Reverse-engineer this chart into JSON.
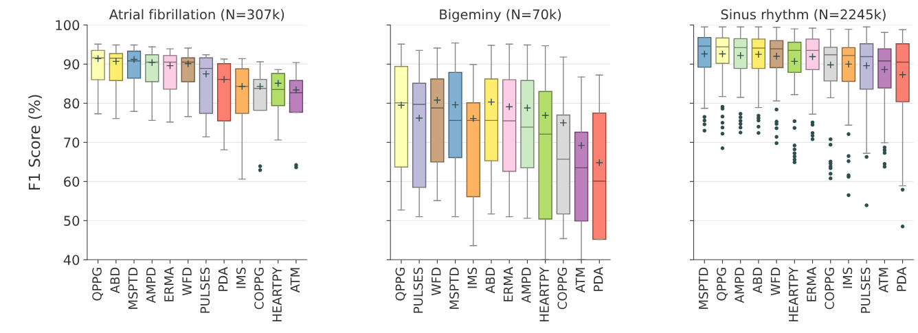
{
  "chart_data": [
    {
      "type": "box",
      "title": "Atrial fibrillation (N=307k)",
      "ylabel": "F1 Score (%)",
      "ylim": [
        40,
        100
      ],
      "yticks": [
        40,
        50,
        60,
        70,
        80,
        90,
        100
      ],
      "grid": "y",
      "categories": [
        "QPPG",
        "ABD",
        "MSPTD",
        "AMPD",
        "ERMA",
        "WFD",
        "PULSES",
        "PDA",
        "IMS",
        "COPPG",
        "HEARTPY",
        "ATM"
      ],
      "colors": [
        "#ffffb3",
        "#ffed6f",
        "#80b1d3",
        "#ccebc5",
        "#fccde5",
        "#c9a47e",
        "#bebada",
        "#fb8072",
        "#fdb462",
        "#d9d9d9",
        "#b3de69",
        "#bc80bd"
      ],
      "boxes": [
        {
          "low": 77.3,
          "q1": 86,
          "median": 91.6,
          "q3": 93.5,
          "high": 95.1,
          "mean": 91.4
        },
        {
          "low": 76.1,
          "q1": 85.8,
          "median": 91.5,
          "q3": 92.7,
          "high": 94.9,
          "mean": 90.7
        },
        {
          "low": 77.9,
          "q1": 86.4,
          "median": 90.8,
          "q3": 93.3,
          "high": 94.9,
          "mean": 91.2
        },
        {
          "low": 75.6,
          "q1": 85.5,
          "median": 90.5,
          "q3": 92.4,
          "high": 94.4,
          "mean": 90.4
        },
        {
          "low": 75.2,
          "q1": 83.6,
          "median": 90.5,
          "q3": 92.2,
          "high": 93.9,
          "mean": 89.6
        },
        {
          "low": 76.6,
          "q1": 85.5,
          "median": 90.5,
          "q3": 91.6,
          "high": 94.1,
          "mean": 90.1
        },
        {
          "low": 71.4,
          "q1": 77.4,
          "median": 88.9,
          "q3": 91.6,
          "high": 92.4,
          "mean": 87.5
        },
        {
          "low": 68.1,
          "q1": 75.5,
          "median": 86.1,
          "q3": 90.1,
          "high": 91.3,
          "mean": 86.1
        },
        {
          "low": 60.6,
          "q1": 77.4,
          "median": 84.3,
          "q3": 88.8,
          "high": 91.4,
          "mean": 84.3
        },
        {
          "low": 78.2,
          "q1": 78.2,
          "median": 83.8,
          "q3": 86.1,
          "high": 90.6,
          "mean": 84.3,
          "outliers": [
            63.9,
            62.9
          ]
        },
        {
          "low": 70.6,
          "q1": 79.4,
          "median": 83.5,
          "q3": 87.6,
          "high": 88.6,
          "mean": 85.1
        },
        {
          "low": 77.7,
          "q1": 77.7,
          "median": 82.7,
          "q3": 85.8,
          "high": 90.4,
          "mean": 83.4,
          "outliers": [
            64.2,
            63.6
          ]
        }
      ]
    },
    {
      "type": "box",
      "title": "Bigeminy (N=70k)",
      "ylim": [
        40,
        100
      ],
      "yticks": [
        {
          "value": 40,
          "label": null
        },
        {
          "value": 50,
          "label": null
        },
        {
          "value": 60,
          "label": null
        },
        {
          "value": 70,
          "label": null
        },
        {
          "value": 80,
          "label": null
        },
        {
          "value": 90,
          "label": null
        },
        {
          "value": 100,
          "label": null
        }
      ],
      "grid": "y",
      "tick_labels": "x",
      "categories": [
        "QPPG",
        "PULSES",
        "WFD",
        "MSPTD",
        "IMS",
        "ABD",
        "ERMA",
        "AMPD",
        "HEARTPY",
        "COPPG",
        "ATM",
        "PDA"
      ],
      "colors": [
        "#ffffb3",
        "#bebada",
        "#c9a47e",
        "#80b1d3",
        "#fdb462",
        "#ffed6f",
        "#fccde5",
        "#ccebc5",
        "#b3de69",
        "#d9d9d9",
        "#bc80bd",
        "#fb8072"
      ],
      "boxes": [
        {
          "low": 52.7,
          "q1": 63.7,
          "median": 80.1,
          "q3": 89.4,
          "high": 95.1,
          "mean": 79.5
        },
        {
          "low": 51,
          "q1": 58.5,
          "median": 79.7,
          "q3": 85.1,
          "high": 93.5,
          "mean": 76.2
        },
        {
          "low": 55.1,
          "q1": 65,
          "median": 78.8,
          "q3": 86.2,
          "high": 94.1,
          "mean": 80.8
        },
        {
          "low": 51,
          "q1": 66.1,
          "median": 75.6,
          "q3": 87.9,
          "high": 95.4,
          "mean": 79.6
        },
        {
          "low": 43.6,
          "q1": 56.1,
          "median": 75.6,
          "q3": 80.1,
          "high": 89.9,
          "mean": 76.1
        },
        {
          "low": 51.7,
          "q1": 65.3,
          "median": 75.6,
          "q3": 86.2,
          "high": 94.8,
          "mean": 80.3
        },
        {
          "low": 51,
          "q1": 62.6,
          "median": 75.5,
          "q3": 86,
          "high": 95.1,
          "mean": 79.1
        },
        {
          "low": 50.6,
          "q1": 63.5,
          "median": 73.9,
          "q3": 85.8,
          "high": 94.9,
          "mean": 78.8
        },
        {
          "low": 40,
          "q1": 50.4,
          "median": 72.1,
          "q3": 83,
          "high": 94.7,
          "mean": 76.9
        },
        {
          "low": 45.4,
          "q1": 51.7,
          "median": 65.7,
          "q3": 77,
          "high": 91.8,
          "mean": 75
        },
        {
          "low": 40,
          "q1": 49.9,
          "median": 63.5,
          "q3": 72.6,
          "high": 86.7,
          "mean": 69.2
        },
        {
          "low": 45.2,
          "q1": 45.2,
          "median": 60.1,
          "q3": 77.5,
          "high": 87.2,
          "mean": 64.8
        }
      ]
    },
    {
      "type": "box",
      "title": "Sinus rhythm (N=2245k)",
      "ylim": [
        40,
        100
      ],
      "yticks": [
        {
          "value": 40,
          "label": null
        },
        {
          "value": 50,
          "label": null
        },
        {
          "value": 60,
          "label": null
        },
        {
          "value": 70,
          "label": null
        },
        {
          "value": 80,
          "label": null
        },
        {
          "value": 90,
          "label": null
        },
        {
          "value": 100,
          "label": null
        }
      ],
      "grid": "y",
      "tick_labels": "x",
      "categories": [
        "MSPTD",
        "QPPG",
        "AMPD",
        "ABD",
        "WFD",
        "HEARTPY",
        "ERMA",
        "COPPG",
        "IMS",
        "PULSES",
        "ATM",
        "PDA"
      ],
      "colors": [
        "#80b1d3",
        "#ffffb3",
        "#ccebc5",
        "#ffed6f",
        "#c9a47e",
        "#b3de69",
        "#fccde5",
        "#d9d9d9",
        "#fdb462",
        "#bebada",
        "#bc80bd",
        "#fb8072"
      ],
      "boxes": [
        {
          "low": 78.7,
          "q1": 89.2,
          "median": 94.6,
          "q3": 96.8,
          "high": 99.5,
          "mean": 92.6,
          "outliers": [
            76.5,
            75.6,
            74.6,
            73
          ]
        },
        {
          "low": 81.7,
          "q1": 90.2,
          "median": 94.4,
          "q3": 96.7,
          "high": 99.5,
          "mean": 92.6,
          "outliers": [
            79.1,
            78.6,
            76.6,
            75,
            73.8,
            72.2,
            68.5
          ]
        },
        {
          "low": 81.5,
          "q1": 88.9,
          "median": 94.2,
          "q3": 96.5,
          "high": 99.5,
          "mean": 92.2,
          "outliers": [
            77.3,
            76.4,
            75.5,
            74.7,
            73.8,
            72.5
          ]
        },
        {
          "low": 78.9,
          "q1": 88.9,
          "median": 94.1,
          "q3": 96.4,
          "high": 99.5,
          "mean": 92.5,
          "outliers": [
            76.8,
            76.2,
            75.6,
            74,
            72.4
          ]
        },
        {
          "low": 80.6,
          "q1": 89.1,
          "median": 93.9,
          "q3": 96,
          "high": 99.4,
          "mean": 92,
          "outliers": [
            78.4,
            75.3,
            74.7,
            73.6,
            71.4,
            69.8
          ]
        },
        {
          "low": 82.2,
          "q1": 87.9,
          "median": 93.5,
          "q3": 95.6,
          "high": 99,
          "mean": 90.7,
          "outliers": [
            75.4,
            73.7,
            69.2,
            68.2,
            67.2,
            66.4,
            65.6,
            64.9
          ]
        },
        {
          "low": 77.2,
          "q1": 88.6,
          "median": 93.5,
          "q3": 96.4,
          "high": 99.2,
          "mean": 91.9,
          "outliers": [
            75.1,
            74.5,
            72.4,
            71.7,
            70.8
          ]
        },
        {
          "low": 81.4,
          "q1": 85.7,
          "median": 92.4,
          "q3": 94.3,
          "high": 98.9,
          "mean": 89.8,
          "outliers": [
            70.8,
            69.4,
            65.1,
            64.6,
            63.9,
            63.4,
            62,
            60.8
          ]
        },
        {
          "low": 74.4,
          "q1": 85.6,
          "median": 92.2,
          "q3": 94.2,
          "high": 98.9,
          "mean": 90,
          "outliers": [
            72.1,
            66.5,
            65.2,
            61.6,
            61.2,
            56.5
          ]
        },
        {
          "low": 67.2,
          "q1": 83.6,
          "median": 91.9,
          "q3": 95.2,
          "high": 99.5,
          "mean": 89.6,
          "outliers": [
            66.3,
            53.9
          ]
        },
        {
          "low": 69.9,
          "q1": 83.9,
          "median": 90.8,
          "q3": 93.9,
          "high": 98.1,
          "mean": 88.6,
          "outliers": [
            68.7,
            68,
            67.3,
            64.5,
            63.8
          ]
        },
        {
          "low": 58.9,
          "q1": 80.4,
          "median": 90.5,
          "q3": 95.2,
          "high": 98.8,
          "mean": 87.3,
          "outliers": [
            57.9,
            48.5
          ]
        }
      ]
    }
  ]
}
